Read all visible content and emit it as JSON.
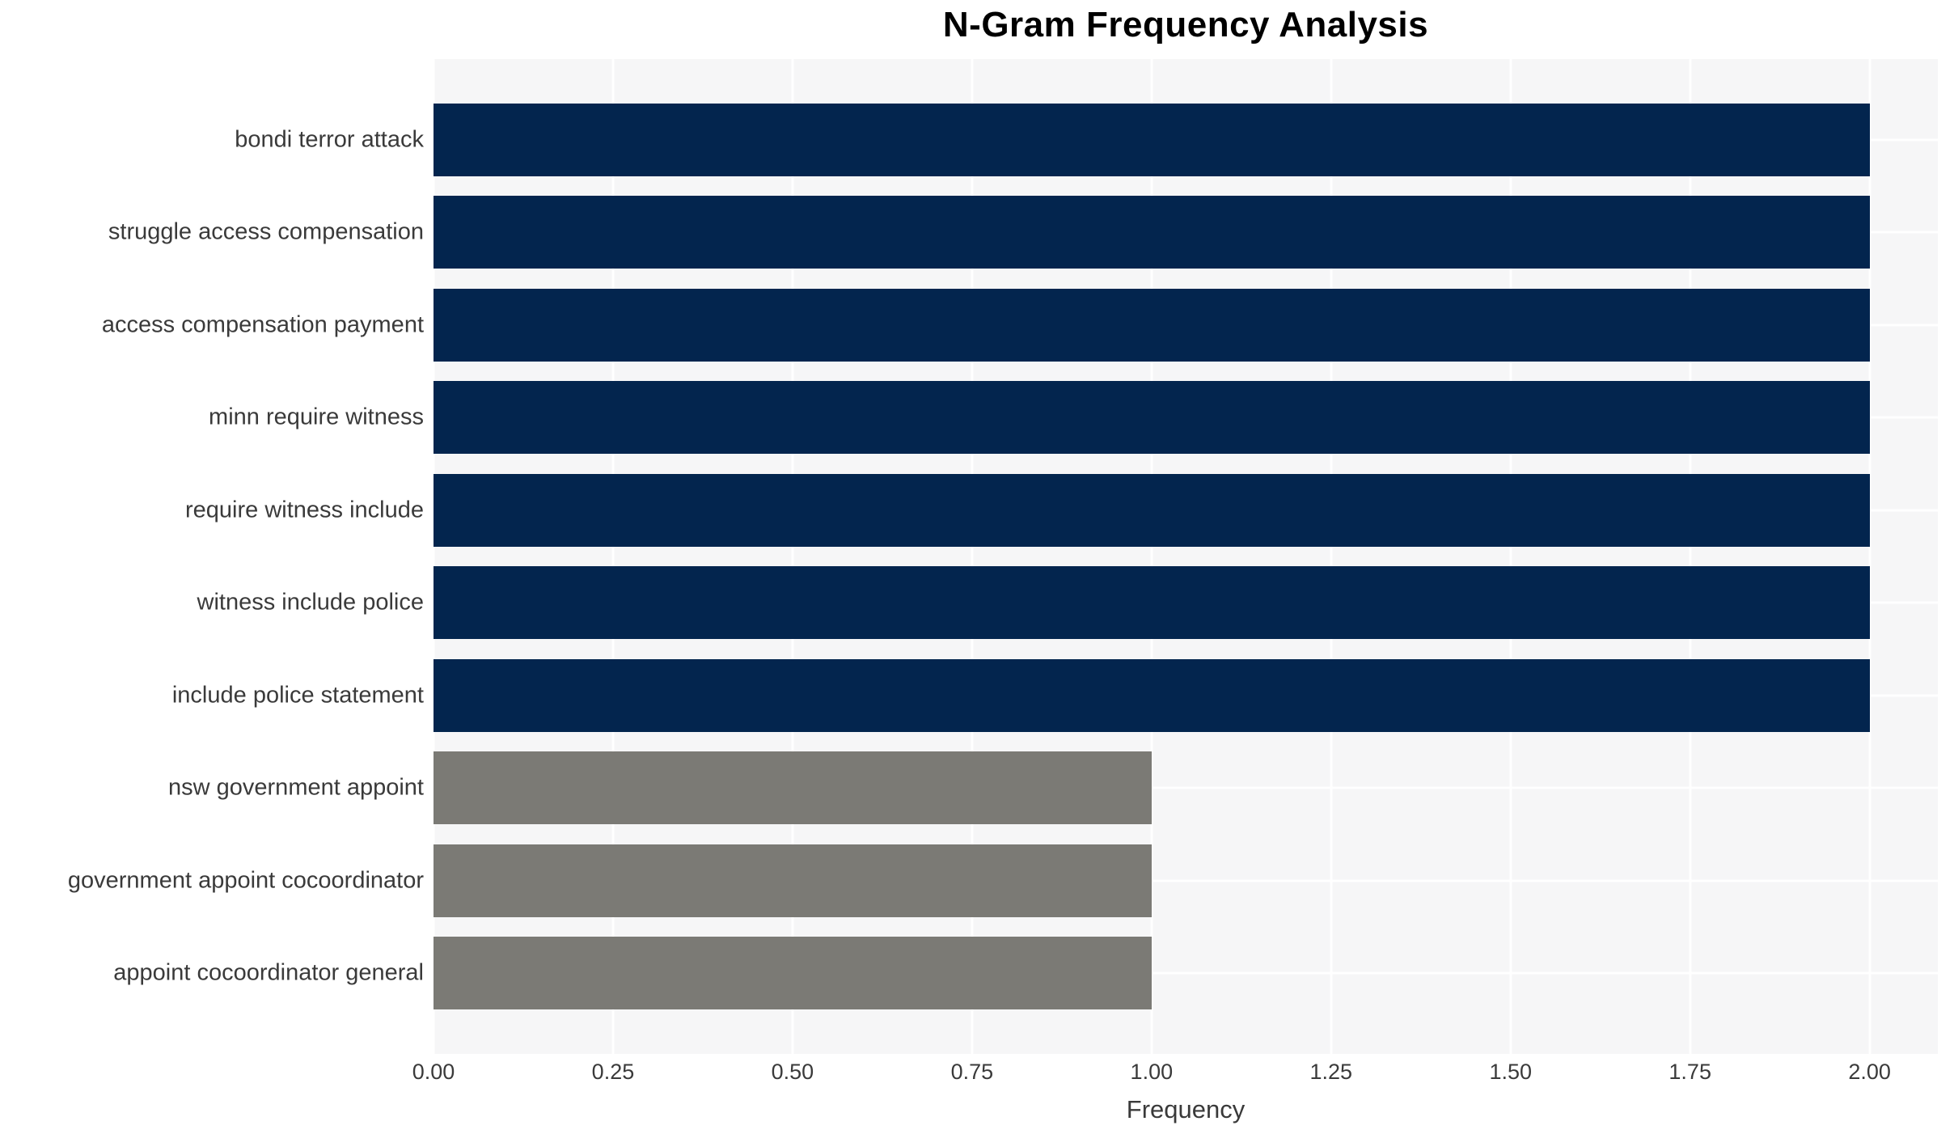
{
  "chart_data": {
    "type": "bar",
    "orientation": "horizontal",
    "title": "N-Gram Frequency Analysis",
    "xlabel": "Frequency",
    "ylabel": "",
    "categories": [
      "bondi terror attack",
      "struggle access compensation",
      "access compensation payment",
      "minn require witness",
      "require witness include",
      "witness include police",
      "include police statement",
      "nsw government appoint",
      "government appoint cocoordinator",
      "appoint cocoordinator general"
    ],
    "values": [
      2.0,
      2.0,
      2.0,
      2.0,
      2.0,
      2.0,
      2.0,
      1.0,
      1.0,
      1.0
    ],
    "bar_colors": [
      "#03254e",
      "#03254e",
      "#03254e",
      "#03254e",
      "#03254e",
      "#03254e",
      "#03254e",
      "#7b7a75",
      "#7b7a75",
      "#7b7a75"
    ],
    "x_ticks": [
      0.0,
      0.25,
      0.5,
      0.75,
      1.0,
      1.25,
      1.5,
      1.75,
      2.0
    ],
    "x_tick_labels": [
      "0.00",
      "0.25",
      "0.50",
      "0.75",
      "1.00",
      "1.25",
      "1.50",
      "1.75",
      "2.00"
    ],
    "xlim": [
      0,
      2.095
    ],
    "grid": true,
    "legend": false
  },
  "colors": {
    "bar_primary": "#03254e",
    "bar_secondary": "#7b7a75",
    "plot_background": "#f6f6f7",
    "gridline": "#ffffff",
    "tick_text": "#3a3a3a",
    "title_text": "#000000",
    "page_background": "#ffffff"
  }
}
